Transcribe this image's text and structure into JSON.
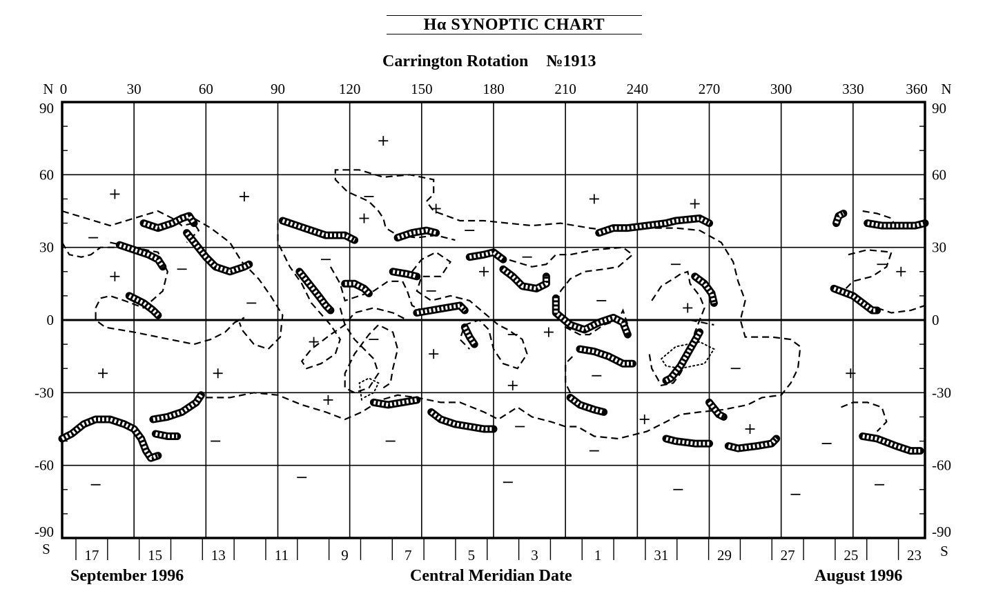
{
  "title": "Hα  SYNOPTIC CHART",
  "subtitle": {
    "label": "Carrington  Rotation",
    "number": "№1913"
  },
  "axes": {
    "north_label": "N",
    "south_label": "S",
    "longitude_ticks": [
      "0",
      "30",
      "60",
      "90",
      "120",
      "150",
      "180",
      "210",
      "240",
      "270",
      "300",
      "330",
      "360"
    ],
    "latitude_ticks": [
      "90",
      "60",
      "30",
      "0",
      "-30",
      "-60",
      "-90"
    ],
    "date_ticks": [
      "17",
      "15",
      "13",
      "11",
      "9",
      "7",
      "5",
      "3",
      "1",
      "31",
      "29",
      "27",
      "25",
      "23"
    ]
  },
  "bottom": {
    "left_month": "September 1996",
    "center_label": "Central Meridian Date",
    "right_month": "August 1996"
  },
  "polarity_marks": {
    "plus": [
      [
        22,
        52
      ],
      [
        134,
        74
      ],
      [
        76,
        51
      ],
      [
        222,
        50
      ],
      [
        264,
        48
      ],
      [
        22,
        18
      ],
      [
        176,
        20
      ],
      [
        350,
        20
      ],
      [
        126,
        42
      ],
      [
        156,
        46
      ],
      [
        261,
        5
      ],
      [
        17,
        -22
      ],
      [
        65,
        -22
      ],
      [
        105,
        -9
      ],
      [
        155,
        -14
      ],
      [
        188,
        -27
      ],
      [
        203,
        -5
      ],
      [
        329,
        -22
      ],
      [
        111,
        -33
      ],
      [
        243,
        -41
      ],
      [
        287,
        -45
      ]
    ],
    "minus": [
      [
        14,
        -68
      ],
      [
        100,
        -65
      ],
      [
        186,
        -67
      ],
      [
        257,
        -70
      ],
      [
        306,
        -72
      ],
      [
        341,
        -68
      ],
      [
        64,
        -50
      ],
      [
        137,
        -50
      ],
      [
        191,
        -44
      ],
      [
        222,
        -54
      ],
      [
        319,
        -51
      ],
      [
        13,
        34
      ],
      [
        50,
        21
      ],
      [
        79,
        7
      ],
      [
        110,
        25
      ],
      [
        128,
        51
      ],
      [
        154,
        12
      ],
      [
        170,
        37
      ],
      [
        194,
        26
      ],
      [
        225,
        8
      ],
      [
        256,
        23
      ],
      [
        342,
        23
      ],
      [
        130,
        -8
      ],
      [
        188,
        -6
      ],
      [
        223,
        -23
      ],
      [
        281,
        -20
      ]
    ]
  }
}
